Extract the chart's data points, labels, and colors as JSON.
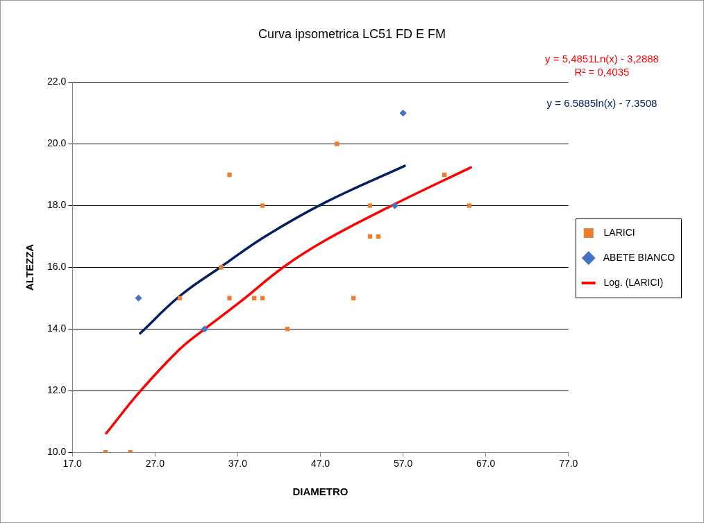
{
  "chart_data": {
    "type": "scatter",
    "title": "Curva ipsometrica LC51 FD E FM",
    "xlabel": "DIAMETRO",
    "ylabel": "ALTEZZA",
    "xlim": [
      17,
      77
    ],
    "xticks": [
      {
        "value": 17,
        "label": "17.0"
      },
      {
        "value": 27,
        "label": "27.0"
      },
      {
        "value": 37,
        "label": "37.0"
      },
      {
        "value": 47,
        "label": "47.0"
      },
      {
        "value": 57,
        "label": "57.0"
      },
      {
        "value": 67,
        "label": "67.0"
      },
      {
        "value": 77,
        "label": "77.0"
      }
    ],
    "ylim": [
      10,
      22
    ],
    "yticks": [
      {
        "value": 10,
        "label": "10.0"
      },
      {
        "value": 12,
        "label": "12.0"
      },
      {
        "value": 14,
        "label": "14.0"
      },
      {
        "value": 16,
        "label": "16.0"
      },
      {
        "value": 18,
        "label": "18.0"
      },
      {
        "value": 20,
        "label": "20.0"
      },
      {
        "value": 22,
        "label": "22.0"
      }
    ],
    "grid": "y",
    "legend": "right",
    "series": [
      {
        "name": "LARICI",
        "marker": "square",
        "color": "#ed7d31",
        "x": [
          21,
          24,
          30,
          35,
          36,
          36,
          39,
          40,
          40,
          43,
          49,
          51,
          53,
          53,
          54,
          62,
          65
        ],
        "values": [
          10,
          10,
          15,
          16,
          19,
          15,
          15,
          15,
          18,
          14,
          20,
          15,
          18,
          17,
          17,
          19,
          18
        ]
      },
      {
        "name": "ABETE BIANCO",
        "marker": "diamond",
        "color": "#4472c4",
        "x": [
          25,
          33,
          56,
          57
        ],
        "values": [
          15,
          14,
          18,
          21
        ]
      },
      {
        "name": "Log. (LARICI)",
        "type": "line",
        "marker": "none",
        "color": "#ff0000",
        "x": [
          21.1,
          25.2,
          30,
          33.2,
          37.3,
          42.6,
          47.7,
          55.7,
          65.2
        ],
        "values": [
          10.62,
          11.98,
          13.35,
          14.04,
          14.88,
          16.02,
          16.89,
          18.01,
          19.24
        ]
      },
      {
        "type": "line",
        "marker": "none",
        "color": "#002060",
        "x": [
          25.2,
          30,
          35,
          40.3,
          47.7,
          57.2
        ],
        "values": [
          13.86,
          15.07,
          16.02,
          17.0,
          18.12,
          19.29
        ]
      }
    ],
    "annotations": [
      "y = 5,4851Ln(x) - 3,2888",
      "R² = 0,4035",
      "y = 6.5885ln(x) - 7.3508"
    ]
  }
}
